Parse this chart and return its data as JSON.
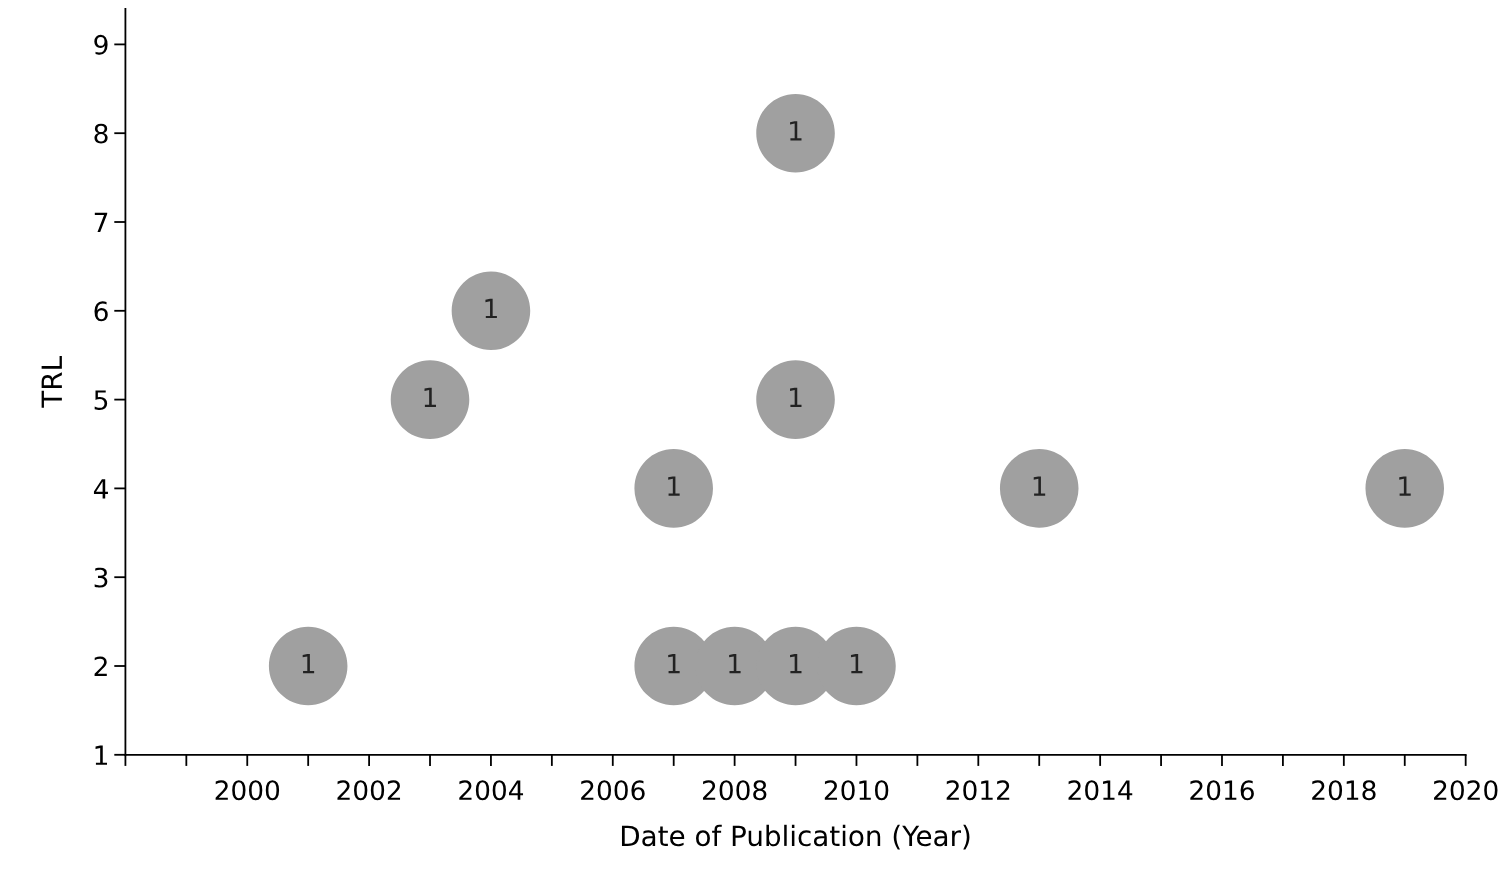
{
  "chart_data": {
    "type": "bubble",
    "xlabel": "Date of Publication (Year)",
    "ylabel": "TRL",
    "x": [
      2001,
      2003,
      2004,
      2007,
      2007,
      2008,
      2009,
      2009,
      2009,
      2010,
      2013,
      2019
    ],
    "values": [
      2,
      5,
      6,
      4,
      2,
      2,
      8,
      5,
      2,
      2,
      4,
      4
    ],
    "sizes": [
      1,
      1,
      1,
      1,
      1,
      1,
      1,
      1,
      1,
      1,
      1,
      1
    ],
    "value_labels": [
      "1",
      "1",
      "1",
      "1",
      "1",
      "1",
      "1",
      "1",
      "1",
      "1",
      "1",
      "1"
    ],
    "color": "#a0a0a0",
    "xlim": [
      1998,
      2020
    ],
    "xticks": [
      {
        "value": 1998,
        "label": null
      },
      {
        "value": 1999,
        "label": null
      },
      2000,
      {
        "value": 2001,
        "label": null
      },
      2002,
      {
        "value": 2003,
        "label": null
      },
      2004,
      {
        "value": 2005,
        "label": null
      },
      2006,
      {
        "value": 2007,
        "label": null
      },
      2008,
      {
        "value": 2009,
        "label": null
      },
      2010,
      {
        "value": 2011,
        "label": null
      },
      2012,
      {
        "value": 2013,
        "label": null
      },
      2014,
      {
        "value": 2015,
        "label": null
      },
      2016,
      {
        "value": 2017,
        "label": null
      },
      2018,
      {
        "value": 2019,
        "label": null
      },
      2020
    ],
    "ylim": [
      1,
      9.4
    ],
    "yticks": [
      1,
      2,
      3,
      4,
      5,
      6,
      7,
      8,
      9
    ],
    "grid": false,
    "legend": false
  }
}
